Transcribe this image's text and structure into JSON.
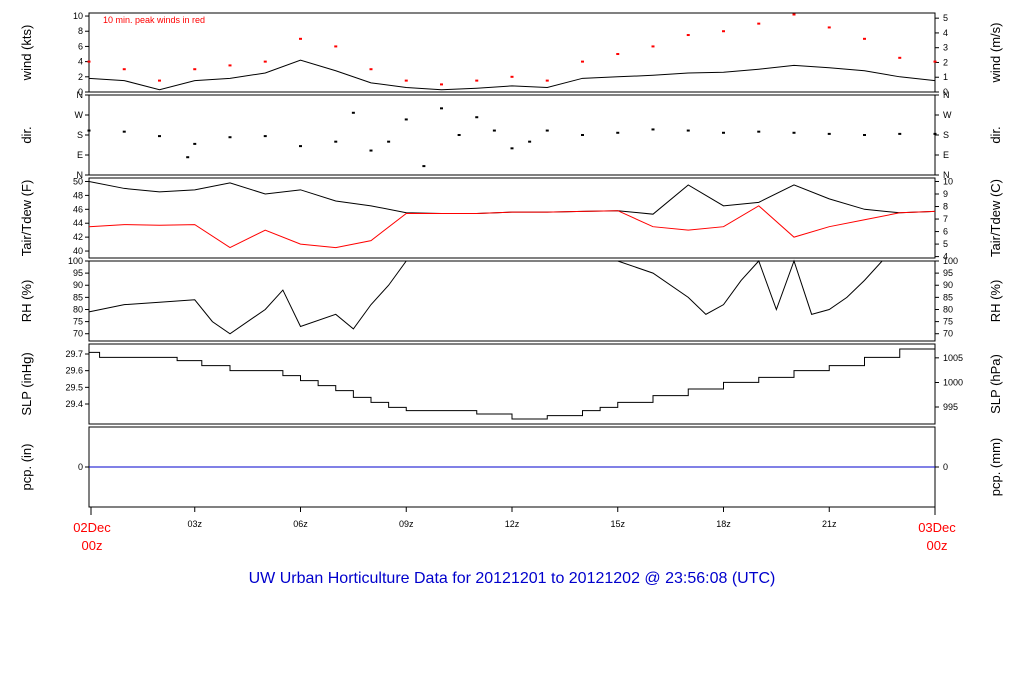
{
  "title": "UW Urban Horticulture Data for 20121201  to  20121202 @ 23:56:08  (UTC)",
  "colors": {
    "primary": "#000000",
    "secondary": "#ff0000",
    "precip": "#0000cc",
    "title": "#0000cc"
  },
  "x_axis": {
    "start_label": [
      "02Dec",
      "00z"
    ],
    "end_label": [
      "03Dec",
      "00z"
    ],
    "ticks": [
      {
        "hour": 3,
        "label": "03z"
      },
      {
        "hour": 6,
        "label": "06z"
      },
      {
        "hour": 9,
        "label": "09z"
      },
      {
        "hour": 12,
        "label": "12z"
      },
      {
        "hour": 15,
        "label": "15z"
      },
      {
        "hour": 18,
        "label": "18z"
      },
      {
        "hour": 21,
        "label": "21z"
      }
    ]
  },
  "chart_data": [
    {
      "id": "wind",
      "type": "line",
      "ylabel_left": "wind (kts)",
      "ylabel_right": "wind (m/s)",
      "annotation": "10 min. peak winds in red",
      "ylim": [
        0,
        10.4
      ],
      "left_ticks": [
        0,
        2,
        4,
        6,
        8,
        10
      ],
      "right_ticks": [
        {
          "v": 0,
          "label": "0"
        },
        {
          "v": 1.944,
          "label": "1"
        },
        {
          "v": 3.888,
          "label": "2"
        },
        {
          "v": 5.832,
          "label": "3"
        },
        {
          "v": 7.776,
          "label": "4"
        },
        {
          "v": 9.72,
          "label": "5"
        }
      ],
      "series": [
        {
          "color": "black",
          "style": "line",
          "x": [
            0,
            1,
            2,
            3,
            4,
            5,
            6,
            7,
            8,
            9,
            10,
            11,
            12,
            13,
            14,
            15,
            16,
            17,
            18,
            19,
            20,
            21,
            22,
            23,
            24
          ],
          "y": [
            1.8,
            1.5,
            0.3,
            1.5,
            1.8,
            2.5,
            4.2,
            2.8,
            1.2,
            0.6,
            0.3,
            0.5,
            0.8,
            0.6,
            1.8,
            2.0,
            2.2,
            2.5,
            2.6,
            3.0,
            3.5,
            3.2,
            2.8,
            2.0,
            1.5
          ]
        },
        {
          "color": "red",
          "style": "points",
          "x": [
            0,
            1,
            2,
            3,
            4,
            5,
            6,
            7,
            8,
            9,
            10,
            11,
            12,
            13,
            14,
            15,
            16,
            17,
            18,
            19,
            20,
            21,
            22,
            23,
            24
          ],
          "y": [
            4.0,
            3.0,
            1.5,
            3.0,
            3.5,
            4.0,
            7.0,
            6.0,
            3.0,
            1.5,
            1.0,
            1.5,
            2.0,
            1.5,
            4.0,
            5.0,
            6.0,
            7.5,
            8.0,
            9.0,
            10.2,
            8.5,
            7.0,
            4.5,
            4.0
          ]
        }
      ]
    },
    {
      "id": "dir",
      "type": "scatter",
      "ylabel_left": "dir.",
      "ylabel_right": "dir.",
      "ylim": [
        0,
        360
      ],
      "left_ticks": [
        {
          "v": 0,
          "label": "N"
        },
        {
          "v": 90,
          "label": "E"
        },
        {
          "v": 180,
          "label": "S"
        },
        {
          "v": 270,
          "label": "W"
        },
        {
          "v": 360,
          "label": "N"
        }
      ],
      "right_ticks": [
        {
          "v": 0,
          "label": "N"
        },
        {
          "v": 90,
          "label": "E"
        },
        {
          "v": 180,
          "label": "S"
        },
        {
          "v": 270,
          "label": "W"
        },
        {
          "v": 360,
          "label": "N"
        }
      ],
      "series": [
        {
          "color": "black",
          "style": "points",
          "x": [
            0,
            1,
            2,
            2.8,
            3,
            4,
            5,
            6,
            7,
            7.5,
            8,
            8.5,
            9,
            9.5,
            10,
            10.5,
            11,
            11.5,
            12,
            12.5,
            13,
            14,
            15,
            16,
            17,
            18,
            19,
            20,
            21,
            22,
            23,
            24
          ],
          "y": [
            200,
            195,
            175,
            80,
            140,
            170,
            175,
            130,
            150,
            280,
            110,
            150,
            250,
            40,
            300,
            180,
            260,
            200,
            120,
            150,
            200,
            180,
            190,
            205,
            200,
            190,
            195,
            190,
            185,
            180,
            185,
            185
          ]
        }
      ]
    },
    {
      "id": "temp",
      "type": "line",
      "ylabel_left": "Tair/Tdew (F)",
      "ylabel_right": "Tair/Tdew (C)",
      "ylim": [
        39,
        50.5
      ],
      "left_ticks": [
        40,
        42,
        44,
        46,
        48,
        50
      ],
      "right_ticks": [
        {
          "v": 39.2,
          "label": "4"
        },
        {
          "v": 41.0,
          "label": "5"
        },
        {
          "v": 42.8,
          "label": "6"
        },
        {
          "v": 44.6,
          "label": "7"
        },
        {
          "v": 46.4,
          "label": "8"
        },
        {
          "v": 48.2,
          "label": "9"
        },
        {
          "v": 50.0,
          "label": "10"
        }
      ],
      "series": [
        {
          "color": "black",
          "style": "line",
          "x": [
            0,
            1,
            2,
            3,
            4,
            5,
            6,
            7,
            8,
            9,
            10,
            11,
            12,
            13,
            14,
            15,
            16,
            17,
            18,
            19,
            20,
            21,
            22,
            23,
            24
          ],
          "y": [
            50.0,
            49.0,
            48.5,
            48.8,
            49.8,
            48.2,
            48.8,
            47.2,
            46.5,
            45.5,
            45.4,
            45.4,
            45.6,
            45.6,
            45.7,
            45.8,
            45.3,
            49.5,
            46.5,
            47.0,
            49.5,
            47.5,
            46.0,
            45.5,
            45.7
          ]
        },
        {
          "color": "red",
          "style": "line",
          "x": [
            0,
            1,
            2,
            3,
            4,
            5,
            6,
            7,
            8,
            9,
            10,
            11,
            12,
            13,
            14,
            15,
            16,
            17,
            18,
            19,
            20,
            21,
            22,
            23,
            24
          ],
          "y": [
            43.5,
            43.8,
            43.7,
            43.8,
            40.5,
            43.0,
            41.0,
            40.5,
            41.5,
            45.4,
            45.4,
            45.4,
            45.6,
            45.6,
            45.7,
            45.8,
            43.5,
            43.0,
            43.5,
            46.5,
            42.0,
            43.5,
            44.5,
            45.5,
            45.7
          ]
        }
      ]
    },
    {
      "id": "rh",
      "type": "line",
      "ylabel_left": "RH (%)",
      "ylabel_right": "RH (%)",
      "ylim": [
        67,
        100
      ],
      "left_ticks": [
        70,
        75,
        80,
        85,
        90,
        95,
        100
      ],
      "right_ticks": [
        {
          "v": 70,
          "label": "70"
        },
        {
          "v": 75,
          "label": "75"
        },
        {
          "v": 80,
          "label": "80"
        },
        {
          "v": 85,
          "label": "85"
        },
        {
          "v": 90,
          "label": "90"
        },
        {
          "v": 95,
          "label": "95"
        },
        {
          "v": 100,
          "label": "100"
        }
      ],
      "series": [
        {
          "color": "black",
          "style": "line",
          "x": [
            0,
            1,
            2,
            3,
            3.5,
            4,
            5,
            5.5,
            6,
            7,
            7.5,
            8,
            8.5,
            9,
            10,
            11,
            12,
            13,
            14,
            15,
            16,
            17,
            17.5,
            18,
            18.5,
            19,
            19.5,
            20,
            20.5,
            21,
            21.5,
            22,
            22.5,
            23,
            24
          ],
          "y": [
            79,
            82,
            83,
            84,
            75,
            70,
            80,
            88,
            73,
            78,
            72,
            82,
            90,
            100,
            100,
            100,
            100,
            100,
            100,
            100,
            95,
            85,
            78,
            82,
            92,
            100,
            80,
            100,
            78,
            80,
            85,
            92,
            100,
            100,
            100
          ]
        }
      ]
    },
    {
      "id": "slp",
      "type": "line",
      "ylabel_left": "SLP (inHg)",
      "ylabel_right": "SLP (hPa)",
      "ylim": [
        29.28,
        29.76
      ],
      "left_ticks": [
        29.4,
        29.5,
        29.6,
        29.7
      ],
      "right_ticks": [
        {
          "v": 29.382,
          "label": "995"
        },
        {
          "v": 29.529,
          "label": "1000"
        },
        {
          "v": 29.677,
          "label": "1005"
        }
      ],
      "series": [
        {
          "color": "black",
          "style": "step",
          "x": [
            0,
            0.3,
            2.5,
            3.2,
            4,
            5.5,
            6,
            6.5,
            7,
            7.5,
            8,
            8.5,
            9,
            10,
            11,
            12,
            13,
            14,
            14.5,
            15,
            16,
            17,
            18,
            19,
            20,
            21,
            22,
            23,
            24
          ],
          "y": [
            29.71,
            29.68,
            29.66,
            29.63,
            29.6,
            29.57,
            29.54,
            29.51,
            29.48,
            29.44,
            29.41,
            29.38,
            29.36,
            29.36,
            29.34,
            29.31,
            29.33,
            29.36,
            29.38,
            29.41,
            29.45,
            29.49,
            29.53,
            29.56,
            29.6,
            29.63,
            29.68,
            29.73,
            29.76
          ]
        }
      ]
    },
    {
      "id": "pcp",
      "type": "line",
      "ylabel_left": "pcp. (in)",
      "ylabel_right": "pcp. (mm)",
      "ylim": [
        -1,
        1
      ],
      "left_ticks": [
        0
      ],
      "right_ticks": [
        {
          "v": 0,
          "label": "0"
        }
      ],
      "series": [
        {
          "color": "blue",
          "style": "line",
          "x": [
            0,
            24
          ],
          "y": [
            0,
            0
          ]
        }
      ]
    }
  ]
}
